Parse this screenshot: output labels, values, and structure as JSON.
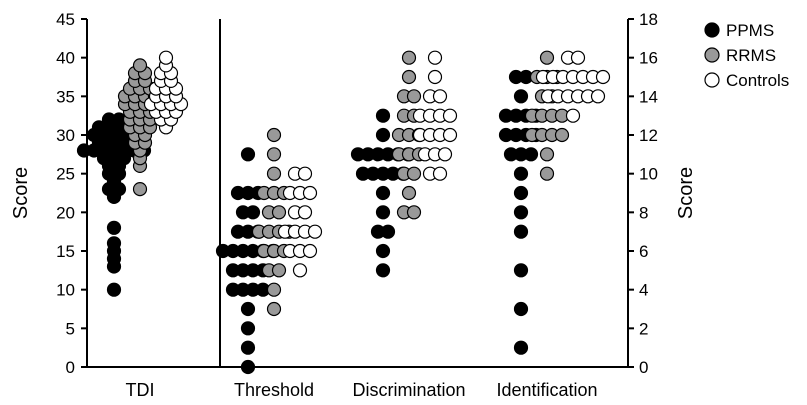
{
  "chart_data": {
    "type": "scatter",
    "title": "",
    "left_axis": {
      "label": "Score",
      "min": 0,
      "max": 45,
      "ticks": [
        0,
        5,
        10,
        15,
        20,
        25,
        30,
        35,
        40,
        45
      ]
    },
    "right_axis": {
      "label": "Score",
      "min": 0,
      "max": 18,
      "ticks": [
        0,
        2,
        4,
        6,
        8,
        10,
        12,
        14,
        16,
        18
      ]
    },
    "categories": [
      "TDI",
      "Threshold",
      "Discrimination",
      "Identification"
    ],
    "legend": {
      "position": "top-right",
      "entries": [
        "PPMS",
        "RRMS",
        "Controls"
      ]
    },
    "series_colors": {
      "PPMS": "#000000",
      "RRMS": "#999999",
      "Controls": "#ffffff"
    },
    "groups": [
      {
        "category": "TDI",
        "axis": "left",
        "series": [
          {
            "name": "PPMS",
            "values": [
              10,
              13,
              14,
              15,
              16,
              18,
              22,
              23,
              23,
              24,
              25,
              25,
              26,
              26,
              27,
              27,
              27,
              28,
              28,
              28,
              28,
              28,
              28,
              28,
              29,
              29,
              29,
              29,
              30,
              30,
              30,
              30,
              30,
              31,
              31,
              31,
              31,
              32,
              32
            ]
          },
          {
            "name": "RRMS",
            "values": [
              23,
              26,
              27,
              28,
              29,
              29,
              30,
              30,
              31,
              31,
              31,
              32,
              32,
              32,
              33,
              33,
              33,
              34,
              34,
              34,
              34,
              35,
              35,
              35,
              35,
              36,
              36,
              36,
              37,
              37,
              38,
              38,
              39
            ]
          },
          {
            "name": "Controls",
            "values": [
              31,
              32,
              32,
              33,
              33,
              33,
              34,
              34,
              34,
              34,
              35,
              35,
              35,
              36,
              36,
              36,
              37,
              37,
              38,
              38,
              39,
              40
            ]
          }
        ]
      },
      {
        "category": "Threshold",
        "axis": "right",
        "series": [
          {
            "name": "PPMS",
            "values": [
              0,
              1,
              2,
              3,
              4,
              4,
              4,
              4,
              5,
              5,
              5,
              5,
              6,
              6,
              6,
              6,
              6,
              6,
              7,
              7,
              7,
              8,
              8,
              9,
              9,
              9,
              11
            ]
          },
          {
            "name": "RRMS",
            "values": [
              3,
              4,
              5,
              5,
              6,
              6,
              6,
              7,
              7,
              7,
              7,
              8,
              8,
              9,
              9,
              9,
              10,
              11,
              12
            ]
          },
          {
            "name": "Controls",
            "values": [
              5,
              6,
              6,
              6,
              7,
              7,
              7,
              7,
              8,
              8,
              9,
              9,
              9,
              10,
              10
            ]
          }
        ]
      },
      {
        "category": "Discrimination",
        "axis": "right",
        "series": [
          {
            "name": "PPMS",
            "values": [
              5,
              6,
              7,
              7,
              8,
              9,
              10,
              10,
              10,
              10,
              10,
              11,
              11,
              11,
              11,
              11,
              11,
              12,
              13
            ]
          },
          {
            "name": "RRMS",
            "values": [
              8,
              8,
              9,
              10,
              10,
              11,
              11,
              11,
              12,
              12,
              12,
              13,
              13,
              14,
              14,
              15,
              16
            ]
          },
          {
            "name": "Controls",
            "values": [
              10,
              10,
              11,
              11,
              11,
              12,
              12,
              12,
              12,
              13,
              13,
              13,
              13,
              14,
              14,
              15,
              16
            ]
          }
        ]
      },
      {
        "category": "Identification",
        "axis": "right",
        "series": [
          {
            "name": "PPMS",
            "values": [
              1,
              3,
              5,
              7,
              8,
              9,
              10,
              11,
              11,
              11,
              12,
              12,
              12,
              12,
              13,
              13,
              13,
              13,
              14,
              15,
              15
            ]
          },
          {
            "name": "RRMS",
            "values": [
              10,
              11,
              12,
              12,
              12,
              12,
              13,
              13,
              13,
              13,
              14,
              14,
              15,
              15,
              15,
              16
            ]
          },
          {
            "name": "Controls",
            "values": [
              13,
              14,
              14,
              14,
              14,
              14,
              14,
              15,
              15,
              15,
              15,
              15,
              15,
              15,
              16,
              16
            ]
          }
        ]
      }
    ]
  }
}
